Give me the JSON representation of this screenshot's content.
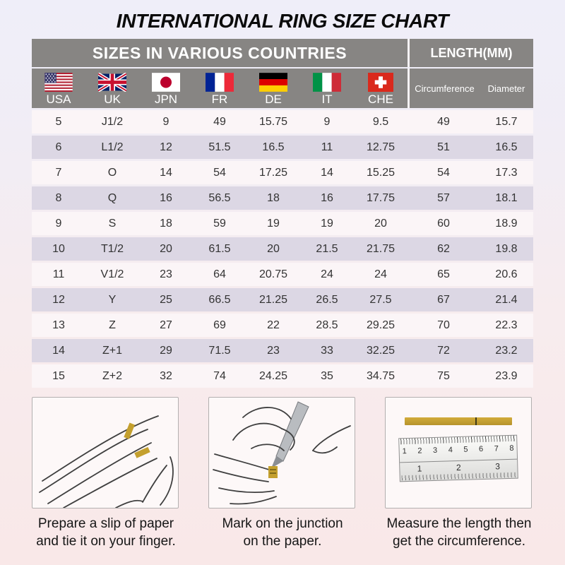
{
  "title": "INTERNATIONAL RING SIZE CHART",
  "table": {
    "group_headers": {
      "left": "SIZES IN VARIOUS COUNTRIES",
      "right": "LENGTH(MM)"
    },
    "countries": [
      {
        "code": "USA",
        "flag": "usa-flag-icon"
      },
      {
        "code": "UK",
        "flag": "uk-flag-icon"
      },
      {
        "code": "JPN",
        "flag": "japan-flag-icon"
      },
      {
        "code": "FR",
        "flag": "france-flag-icon"
      },
      {
        "code": "DE",
        "flag": "germany-flag-icon"
      },
      {
        "code": "IT",
        "flag": "italy-flag-icon"
      },
      {
        "code": "CHE",
        "flag": "switzerland-flag-icon"
      }
    ],
    "length_columns": [
      "Circumference",
      "Diameter"
    ]
  },
  "chart_data": {
    "type": "table",
    "title": "INTERNATIONAL RING SIZE CHART",
    "columns": [
      "USA",
      "UK",
      "JPN",
      "FR",
      "DE",
      "IT",
      "CHE",
      "Circumference (mm)",
      "Diameter (mm)"
    ],
    "rows": [
      [
        "5",
        "J1/2",
        "9",
        "49",
        "15.75",
        "9",
        "9.5",
        "49",
        "15.7"
      ],
      [
        "6",
        "L1/2",
        "12",
        "51.5",
        "16.5",
        "11",
        "12.75",
        "51",
        "16.5"
      ],
      [
        "7",
        "O",
        "14",
        "54",
        "17.25",
        "14",
        "15.25",
        "54",
        "17.3"
      ],
      [
        "8",
        "Q",
        "16",
        "56.5",
        "18",
        "16",
        "17.75",
        "57",
        "18.1"
      ],
      [
        "9",
        "S",
        "18",
        "59",
        "19",
        "19",
        "20",
        "60",
        "18.9"
      ],
      [
        "10",
        "T1/2",
        "20",
        "61.5",
        "20",
        "21.5",
        "21.75",
        "62",
        "19.8"
      ],
      [
        "11",
        "V1/2",
        "23",
        "64",
        "20.75",
        "24",
        "24",
        "65",
        "20.6"
      ],
      [
        "12",
        "Y",
        "25",
        "66.5",
        "21.25",
        "26.5",
        "27.5",
        "67",
        "21.4"
      ],
      [
        "13",
        "Z",
        "27",
        "69",
        "22",
        "28.5",
        "29.25",
        "70",
        "22.3"
      ],
      [
        "14",
        "Z+1",
        "29",
        "71.5",
        "23",
        "33",
        "32.25",
        "72",
        "23.2"
      ],
      [
        "15",
        "Z+2",
        "32",
        "74",
        "24.25",
        "35",
        "34.75",
        "75",
        "23.9"
      ]
    ]
  },
  "instructions": [
    {
      "illustration": "hand-with-paper-strip",
      "lines": [
        "Prepare a slip of paper",
        "and tie it on your finger."
      ]
    },
    {
      "illustration": "hand-marking-paper",
      "lines": [
        "Mark on the junction",
        "on the paper."
      ]
    },
    {
      "illustration": "ruler-measuring-strip",
      "lines": [
        "Measure the length then",
        "get the circumference."
      ],
      "ruler": {
        "cm_numbers": [
          "1",
          "2",
          "3",
          "4",
          "5",
          "6",
          "7",
          "8"
        ],
        "inch_numbers": [
          "1",
          "2",
          "3"
        ]
      }
    }
  ],
  "colors": {
    "header_gray": "#878583",
    "row_alternate": "#dcd7e4",
    "row_base": "#fbf5f7",
    "paper_gold": "#c4a02e",
    "background_top": "#efeef9",
    "background_bottom": "#f9e8e8",
    "header_text": "#ffffff"
  }
}
